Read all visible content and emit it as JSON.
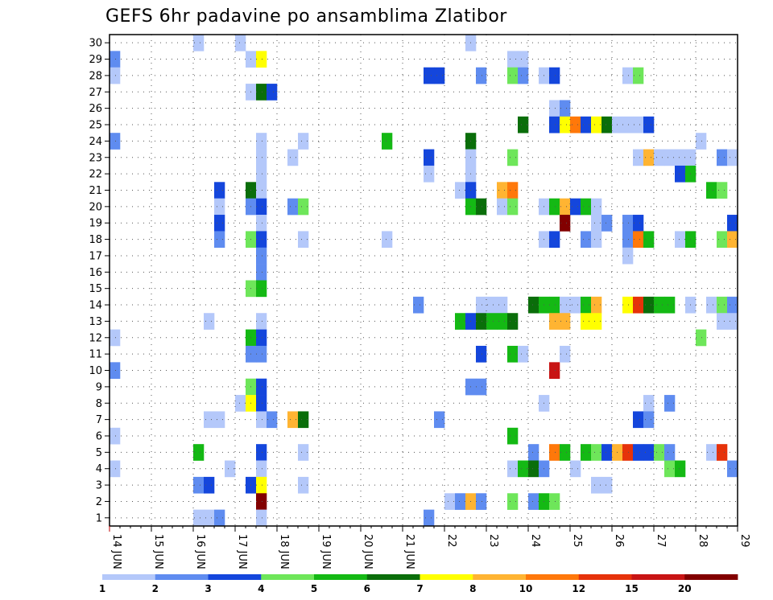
{
  "chart_data": {
    "type": "heatmap",
    "title": "GEFS 6hr padavine po ansamblima Zlatibor",
    "xlabel": "",
    "ylabel": "",
    "x_tick_labels": [
      "14 JUN",
      "15 JUN",
      "16 JUN",
      "17 JUN",
      "18 JUN",
      "19 JUN",
      "20 JUN",
      "21 JUN",
      "22",
      "23",
      "24",
      "25",
      "26",
      "27",
      "28",
      "29"
    ],
    "y_tick_labels": [
      "1",
      "2",
      "3",
      "4",
      "5",
      "6",
      "7",
      "8",
      "9",
      "10",
      "11",
      "12",
      "13",
      "14",
      "15",
      "16",
      "17",
      "18",
      "19",
      "20",
      "21",
      "22",
      "23",
      "24",
      "25",
      "26",
      "27",
      "28",
      "29",
      "30"
    ],
    "xlim": [
      0,
      60
    ],
    "ylim": [
      0.5,
      30.5
    ],
    "grid": true,
    "colorbar": {
      "labels": [
        "1",
        "2",
        "3",
        "4",
        "5",
        "6",
        "7",
        "8",
        "10",
        "12",
        "15",
        "20"
      ],
      "colors": [
        "#b4c8fa",
        "#5f8cf0",
        "#1446dc",
        "#6ee65a",
        "#14b914",
        "#0a6e0a",
        "#ffff00",
        "#ffb432",
        "#ff780a",
        "#e6320a",
        "#c81414",
        "#820000"
      ]
    },
    "legend": [
      {
        "class": 0,
        "label": "1-2"
      },
      {
        "class": 1,
        "label": "2-3"
      },
      {
        "class": 2,
        "label": "3-4"
      },
      {
        "class": 3,
        "label": "4-5"
      },
      {
        "class": 4,
        "label": "5-6"
      },
      {
        "class": 5,
        "label": "6-7"
      },
      {
        "class": 6,
        "label": "7-8"
      },
      {
        "class": 7,
        "label": "8-10"
      },
      {
        "class": 8,
        "label": "10-12"
      },
      {
        "class": 9,
        "label": "12-15"
      },
      {
        "class": 10,
        "label": "15-20"
      },
      {
        "class": 11,
        "label": ">20"
      }
    ],
    "cells": [
      {
        "t": 0,
        "m": 29,
        "c": 1
      },
      {
        "t": 0,
        "m": 28,
        "c": 0
      },
      {
        "t": 0,
        "m": 24,
        "c": 1
      },
      {
        "t": 0,
        "m": 12,
        "c": 0
      },
      {
        "t": 0,
        "m": 10,
        "c": 1
      },
      {
        "t": 0,
        "m": 6,
        "c": 0
      },
      {
        "t": 0,
        "m": 4,
        "c": 0
      },
      {
        "t": 8,
        "m": 30,
        "c": 0
      },
      {
        "t": 8,
        "m": 5,
        "c": 4
      },
      {
        "t": 8,
        "m": 3,
        "c": 1
      },
      {
        "t": 8,
        "m": 1,
        "c": 0
      },
      {
        "t": 9,
        "m": 13,
        "c": 0
      },
      {
        "t": 9,
        "m": 7,
        "c": 0
      },
      {
        "t": 9,
        "m": 3,
        "c": 2
      },
      {
        "t": 9,
        "m": 1,
        "c": 0
      },
      {
        "t": 10,
        "m": 21,
        "c": 2
      },
      {
        "t": 10,
        "m": 20,
        "c": 0
      },
      {
        "t": 10,
        "m": 19,
        "c": 2
      },
      {
        "t": 10,
        "m": 18,
        "c": 1
      },
      {
        "t": 10,
        "m": 7,
        "c": 0
      },
      {
        "t": 10,
        "m": 1,
        "c": 1
      },
      {
        "t": 11,
        "m": 4,
        "c": 0
      },
      {
        "t": 12,
        "m": 30,
        "c": 0
      },
      {
        "t": 12,
        "m": 8,
        "c": 0
      },
      {
        "t": 13,
        "m": 29,
        "c": 0
      },
      {
        "t": 13,
        "m": 27,
        "c": 0
      },
      {
        "t": 13,
        "m": 21,
        "c": 5
      },
      {
        "t": 13,
        "m": 20,
        "c": 1
      },
      {
        "t": 13,
        "m": 18,
        "c": 3
      },
      {
        "t": 13,
        "m": 15,
        "c": 3
      },
      {
        "t": 13,
        "m": 12,
        "c": 4
      },
      {
        "t": 13,
        "m": 11,
        "c": 1
      },
      {
        "t": 13,
        "m": 9,
        "c": 3
      },
      {
        "t": 13,
        "m": 8,
        "c": 6
      },
      {
        "t": 13,
        "m": 3,
        "c": 2
      },
      {
        "t": 14,
        "m": 29,
        "c": 6
      },
      {
        "t": 14,
        "m": 27,
        "c": 5
      },
      {
        "t": 14,
        "m": 24,
        "c": 0
      },
      {
        "t": 14,
        "m": 23,
        "c": 0
      },
      {
        "t": 14,
        "m": 22,
        "c": 0
      },
      {
        "t": 14,
        "m": 21,
        "c": 0
      },
      {
        "t": 14,
        "m": 20,
        "c": 2
      },
      {
        "t": 14,
        "m": 19,
        "c": 0
      },
      {
        "t": 14,
        "m": 18,
        "c": 2
      },
      {
        "t": 14,
        "m": 17,
        "c": 1
      },
      {
        "t": 14,
        "m": 16,
        "c": 1
      },
      {
        "t": 14,
        "m": 15,
        "c": 4
      },
      {
        "t": 14,
        "m": 13,
        "c": 0
      },
      {
        "t": 14,
        "m": 12,
        "c": 2
      },
      {
        "t": 14,
        "m": 11,
        "c": 1
      },
      {
        "t": 14,
        "m": 9,
        "c": 2
      },
      {
        "t": 14,
        "m": 8,
        "c": 2
      },
      {
        "t": 14,
        "m": 7,
        "c": 0
      },
      {
        "t": 14,
        "m": 5,
        "c": 2
      },
      {
        "t": 14,
        "m": 4,
        "c": 0
      },
      {
        "t": 14,
        "m": 3,
        "c": 6
      },
      {
        "t": 14,
        "m": 2,
        "c": 11
      },
      {
        "t": 14,
        "m": 1,
        "c": 0
      },
      {
        "t": 15,
        "m": 27,
        "c": 2
      },
      {
        "t": 15,
        "m": 7,
        "c": 1
      },
      {
        "t": 17,
        "m": 23,
        "c": 0
      },
      {
        "t": 17,
        "m": 20,
        "c": 1
      },
      {
        "t": 17,
        "m": 7,
        "c": 7
      },
      {
        "t": 18,
        "m": 24,
        "c": 0
      },
      {
        "t": 18,
        "m": 20,
        "c": 3
      },
      {
        "t": 18,
        "m": 18,
        "c": 0
      },
      {
        "t": 18,
        "m": 7,
        "c": 5
      },
      {
        "t": 18,
        "m": 5,
        "c": 0
      },
      {
        "t": 18,
        "m": 3,
        "c": 0
      },
      {
        "t": 26,
        "m": 24,
        "c": 4
      },
      {
        "t": 26,
        "m": 18,
        "c": 0
      },
      {
        "t": 29,
        "m": 14,
        "c": 1
      },
      {
        "t": 30,
        "m": 28,
        "c": 2
      },
      {
        "t": 30,
        "m": 23,
        "c": 2
      },
      {
        "t": 30,
        "m": 22,
        "c": 0
      },
      {
        "t": 30,
        "m": 1,
        "c": 1
      },
      {
        "t": 31,
        "m": 28,
        "c": 2
      },
      {
        "t": 31,
        "m": 7,
        "c": 1
      },
      {
        "t": 32,
        "m": 2,
        "c": 0
      },
      {
        "t": 33,
        "m": 21,
        "c": 0
      },
      {
        "t": 33,
        "m": 13,
        "c": 4
      },
      {
        "t": 33,
        "m": 2,
        "c": 1
      },
      {
        "t": 34,
        "m": 30,
        "c": 0
      },
      {
        "t": 34,
        "m": 24,
        "c": 5
      },
      {
        "t": 34,
        "m": 23,
        "c": 0
      },
      {
        "t": 34,
        "m": 22,
        "c": 0
      },
      {
        "t": 34,
        "m": 21,
        "c": 2
      },
      {
        "t": 34,
        "m": 20,
        "c": 4
      },
      {
        "t": 34,
        "m": 13,
        "c": 2
      },
      {
        "t": 34,
        "m": 9,
        "c": 1
      },
      {
        "t": 34,
        "m": 2,
        "c": 7
      },
      {
        "t": 35,
        "m": 28,
        "c": 1
      },
      {
        "t": 35,
        "m": 20,
        "c": 5
      },
      {
        "t": 35,
        "m": 14,
        "c": 0
      },
      {
        "t": 35,
        "m": 13,
        "c": 5
      },
      {
        "t": 35,
        "m": 11,
        "c": 2
      },
      {
        "t": 35,
        "m": 9,
        "c": 1
      },
      {
        "t": 35,
        "m": 2,
        "c": 1
      },
      {
        "t": 36,
        "m": 14,
        "c": 0
      },
      {
        "t": 36,
        "m": 13,
        "c": 4
      },
      {
        "t": 37,
        "m": 21,
        "c": 7
      },
      {
        "t": 37,
        "m": 20,
        "c": 0
      },
      {
        "t": 37,
        "m": 14,
        "c": 0
      },
      {
        "t": 37,
        "m": 13,
        "c": 4
      },
      {
        "t": 38,
        "m": 29,
        "c": 0
      },
      {
        "t": 38,
        "m": 28,
        "c": 3
      },
      {
        "t": 38,
        "m": 23,
        "c": 3
      },
      {
        "t": 38,
        "m": 21,
        "c": 8
      },
      {
        "t": 38,
        "m": 20,
        "c": 3
      },
      {
        "t": 38,
        "m": 13,
        "c": 5
      },
      {
        "t": 38,
        "m": 11,
        "c": 4
      },
      {
        "t": 38,
        "m": 6,
        "c": 4
      },
      {
        "t": 38,
        "m": 4,
        "c": 0
      },
      {
        "t": 38,
        "m": 2,
        "c": 3
      },
      {
        "t": 39,
        "m": 29,
        "c": 0
      },
      {
        "t": 39,
        "m": 28,
        "c": 1
      },
      {
        "t": 39,
        "m": 25,
        "c": 5
      },
      {
        "t": 39,
        "m": 11,
        "c": 0
      },
      {
        "t": 39,
        "m": 4,
        "c": 4
      },
      {
        "t": 40,
        "m": 14,
        "c": 5
      },
      {
        "t": 40,
        "m": 5,
        "c": 1
      },
      {
        "t": 40,
        "m": 4,
        "c": 5
      },
      {
        "t": 40,
        "m": 2,
        "c": 1
      },
      {
        "t": 41,
        "m": 28,
        "c": 0
      },
      {
        "t": 41,
        "m": 20,
        "c": 0
      },
      {
        "t": 41,
        "m": 18,
        "c": 0
      },
      {
        "t": 41,
        "m": 14,
        "c": 4
      },
      {
        "t": 41,
        "m": 8,
        "c": 0
      },
      {
        "t": 41,
        "m": 4,
        "c": 1
      },
      {
        "t": 41,
        "m": 2,
        "c": 4
      },
      {
        "t": 42,
        "m": 28,
        "c": 2
      },
      {
        "t": 42,
        "m": 26,
        "c": 0
      },
      {
        "t": 42,
        "m": 25,
        "c": 2
      },
      {
        "t": 42,
        "m": 20,
        "c": 4
      },
      {
        "t": 42,
        "m": 18,
        "c": 2
      },
      {
        "t": 42,
        "m": 14,
        "c": 4
      },
      {
        "t": 42,
        "m": 13,
        "c": 7
      },
      {
        "t": 42,
        "m": 10,
        "c": 10
      },
      {
        "t": 42,
        "m": 5,
        "c": 8
      },
      {
        "t": 42,
        "m": 2,
        "c": 3
      },
      {
        "t": 43,
        "m": 26,
        "c": 1
      },
      {
        "t": 43,
        "m": 25,
        "c": 6
      },
      {
        "t": 43,
        "m": 20,
        "c": 7
      },
      {
        "t": 43,
        "m": 19,
        "c": 11
      },
      {
        "t": 43,
        "m": 14,
        "c": 0
      },
      {
        "t": 43,
        "m": 13,
        "c": 7
      },
      {
        "t": 43,
        "m": 11,
        "c": 0
      },
      {
        "t": 43,
        "m": 5,
        "c": 4
      },
      {
        "t": 44,
        "m": 25,
        "c": 8
      },
      {
        "t": 44,
        "m": 20,
        "c": 2
      },
      {
        "t": 44,
        "m": 14,
        "c": 0
      },
      {
        "t": 44,
        "m": 4,
        "c": 0
      },
      {
        "t": 45,
        "m": 25,
        "c": 2
      },
      {
        "t": 45,
        "m": 20,
        "c": 4
      },
      {
        "t": 45,
        "m": 18,
        "c": 1
      },
      {
        "t": 45,
        "m": 14,
        "c": 4
      },
      {
        "t": 45,
        "m": 13,
        "c": 6
      },
      {
        "t": 45,
        "m": 5,
        "c": 4
      },
      {
        "t": 46,
        "m": 25,
        "c": 6
      },
      {
        "t": 46,
        "m": 20,
        "c": 0
      },
      {
        "t": 46,
        "m": 19,
        "c": 0
      },
      {
        "t": 46,
        "m": 18,
        "c": 0
      },
      {
        "t": 46,
        "m": 14,
        "c": 7
      },
      {
        "t": 46,
        "m": 13,
        "c": 6
      },
      {
        "t": 46,
        "m": 5,
        "c": 3
      },
      {
        "t": 46,
        "m": 3,
        "c": 0
      },
      {
        "t": 47,
        "m": 25,
        "c": 5
      },
      {
        "t": 47,
        "m": 19,
        "c": 1
      },
      {
        "t": 47,
        "m": 5,
        "c": 2
      },
      {
        "t": 47,
        "m": 3,
        "c": 0
      },
      {
        "t": 48,
        "m": 25,
        "c": 0
      },
      {
        "t": 48,
        "m": 5,
        "c": 7
      },
      {
        "t": 49,
        "m": 28,
        "c": 0
      },
      {
        "t": 49,
        "m": 25,
        "c": 0
      },
      {
        "t": 49,
        "m": 19,
        "c": 1
      },
      {
        "t": 49,
        "m": 18,
        "c": 1
      },
      {
        "t": 49,
        "m": 17,
        "c": 0
      },
      {
        "t": 49,
        "m": 14,
        "c": 6
      },
      {
        "t": 49,
        "m": 5,
        "c": 9
      },
      {
        "t": 50,
        "m": 28,
        "c": 3
      },
      {
        "t": 50,
        "m": 25,
        "c": 0
      },
      {
        "t": 50,
        "m": 23,
        "c": 0
      },
      {
        "t": 50,
        "m": 19,
        "c": 2
      },
      {
        "t": 50,
        "m": 18,
        "c": 8
      },
      {
        "t": 50,
        "m": 14,
        "c": 9
      },
      {
        "t": 50,
        "m": 7,
        "c": 2
      },
      {
        "t": 50,
        "m": 5,
        "c": 2
      },
      {
        "t": 51,
        "m": 25,
        "c": 2
      },
      {
        "t": 51,
        "m": 23,
        "c": 7
      },
      {
        "t": 51,
        "m": 18,
        "c": 4
      },
      {
        "t": 51,
        "m": 14,
        "c": 5
      },
      {
        "t": 51,
        "m": 8,
        "c": 0
      },
      {
        "t": 51,
        "m": 7,
        "c": 1
      },
      {
        "t": 51,
        "m": 5,
        "c": 2
      },
      {
        "t": 52,
        "m": 23,
        "c": 0
      },
      {
        "t": 52,
        "m": 14,
        "c": 4
      },
      {
        "t": 52,
        "m": 5,
        "c": 3
      },
      {
        "t": 53,
        "m": 23,
        "c": 0
      },
      {
        "t": 53,
        "m": 14,
        "c": 4
      },
      {
        "t": 53,
        "m": 8,
        "c": 1
      },
      {
        "t": 53,
        "m": 5,
        "c": 1
      },
      {
        "t": 53,
        "m": 4,
        "c": 3
      },
      {
        "t": 54,
        "m": 23,
        "c": 0
      },
      {
        "t": 54,
        "m": 22,
        "c": 2
      },
      {
        "t": 54,
        "m": 18,
        "c": 0
      },
      {
        "t": 54,
        "m": 4,
        "c": 4
      },
      {
        "t": 55,
        "m": 23,
        "c": 0
      },
      {
        "t": 55,
        "m": 22,
        "c": 4
      },
      {
        "t": 55,
        "m": 18,
        "c": 4
      },
      {
        "t": 55,
        "m": 14,
        "c": 0
      },
      {
        "t": 56,
        "m": 24,
        "c": 0
      },
      {
        "t": 56,
        "m": 12,
        "c": 3
      },
      {
        "t": 57,
        "m": 21,
        "c": 4
      },
      {
        "t": 57,
        "m": 14,
        "c": 0
      },
      {
        "t": 57,
        "m": 5,
        "c": 0
      },
      {
        "t": 58,
        "m": 23,
        "c": 1
      },
      {
        "t": 58,
        "m": 21,
        "c": 3
      },
      {
        "t": 58,
        "m": 18,
        "c": 3
      },
      {
        "t": 58,
        "m": 14,
        "c": 3
      },
      {
        "t": 58,
        "m": 13,
        "c": 0
      },
      {
        "t": 58,
        "m": 5,
        "c": 9
      },
      {
        "t": 59,
        "m": 23,
        "c": 0
      },
      {
        "t": 59,
        "m": 19,
        "c": 2
      },
      {
        "t": 59,
        "m": 18,
        "c": 7
      },
      {
        "t": 59,
        "m": 14,
        "c": 1
      },
      {
        "t": 59,
        "m": 13,
        "c": 0
      },
      {
        "t": 59,
        "m": 4,
        "c": 1
      }
    ]
  }
}
